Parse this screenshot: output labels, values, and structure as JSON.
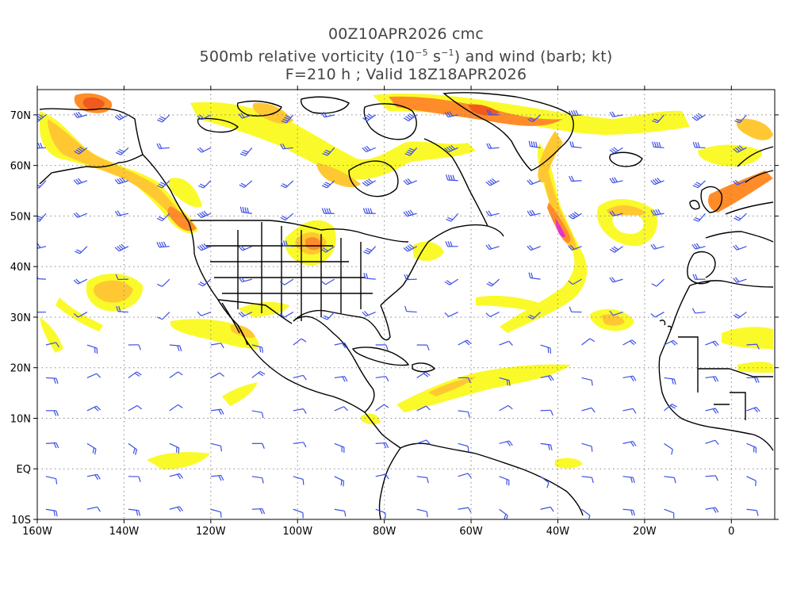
{
  "title": {
    "line1": "00Z10APR2026 cmc",
    "line2_prefix": "500mb relative vorticity (10",
    "line2_exp1": "−5",
    "line2_mid": " s",
    "line2_exp2": "−1",
    "line2_suffix": ") and wind (barb; kt)",
    "line3": "F=210 h ; Valid 18Z18APR2026"
  },
  "map": {
    "lon_range": [
      -160,
      10
    ],
    "lat_range": [
      -10,
      75
    ],
    "lon_ticks": [
      {
        "value": -160,
        "label": "160W"
      },
      {
        "value": -140,
        "label": "140W"
      },
      {
        "value": -120,
        "label": "120W"
      },
      {
        "value": -100,
        "label": "100W"
      },
      {
        "value": -80,
        "label": "80W"
      },
      {
        "value": -60,
        "label": "60W"
      },
      {
        "value": -40,
        "label": "40W"
      },
      {
        "value": -20,
        "label": "20W"
      },
      {
        "value": 0,
        "label": "0"
      }
    ],
    "lat_ticks": [
      {
        "value": 70,
        "label": "70N"
      },
      {
        "value": 60,
        "label": "60N"
      },
      {
        "value": 50,
        "label": "50N"
      },
      {
        "value": 40,
        "label": "40N"
      },
      {
        "value": 30,
        "label": "30N"
      },
      {
        "value": 20,
        "label": "20N"
      },
      {
        "value": 10,
        "label": "10N"
      },
      {
        "value": 0,
        "label": "EQ"
      },
      {
        "value": -10,
        "label": "10S"
      }
    ],
    "colors": {
      "vort_low": "#fafa2a",
      "vort_mid": "#ffc832",
      "vort_high": "#ff8c28",
      "vort_max": "#f05a1e",
      "vort_extreme": "#e632c8",
      "barb": "#3c50e6",
      "coast": "#000000",
      "grid": "#888888"
    }
  }
}
